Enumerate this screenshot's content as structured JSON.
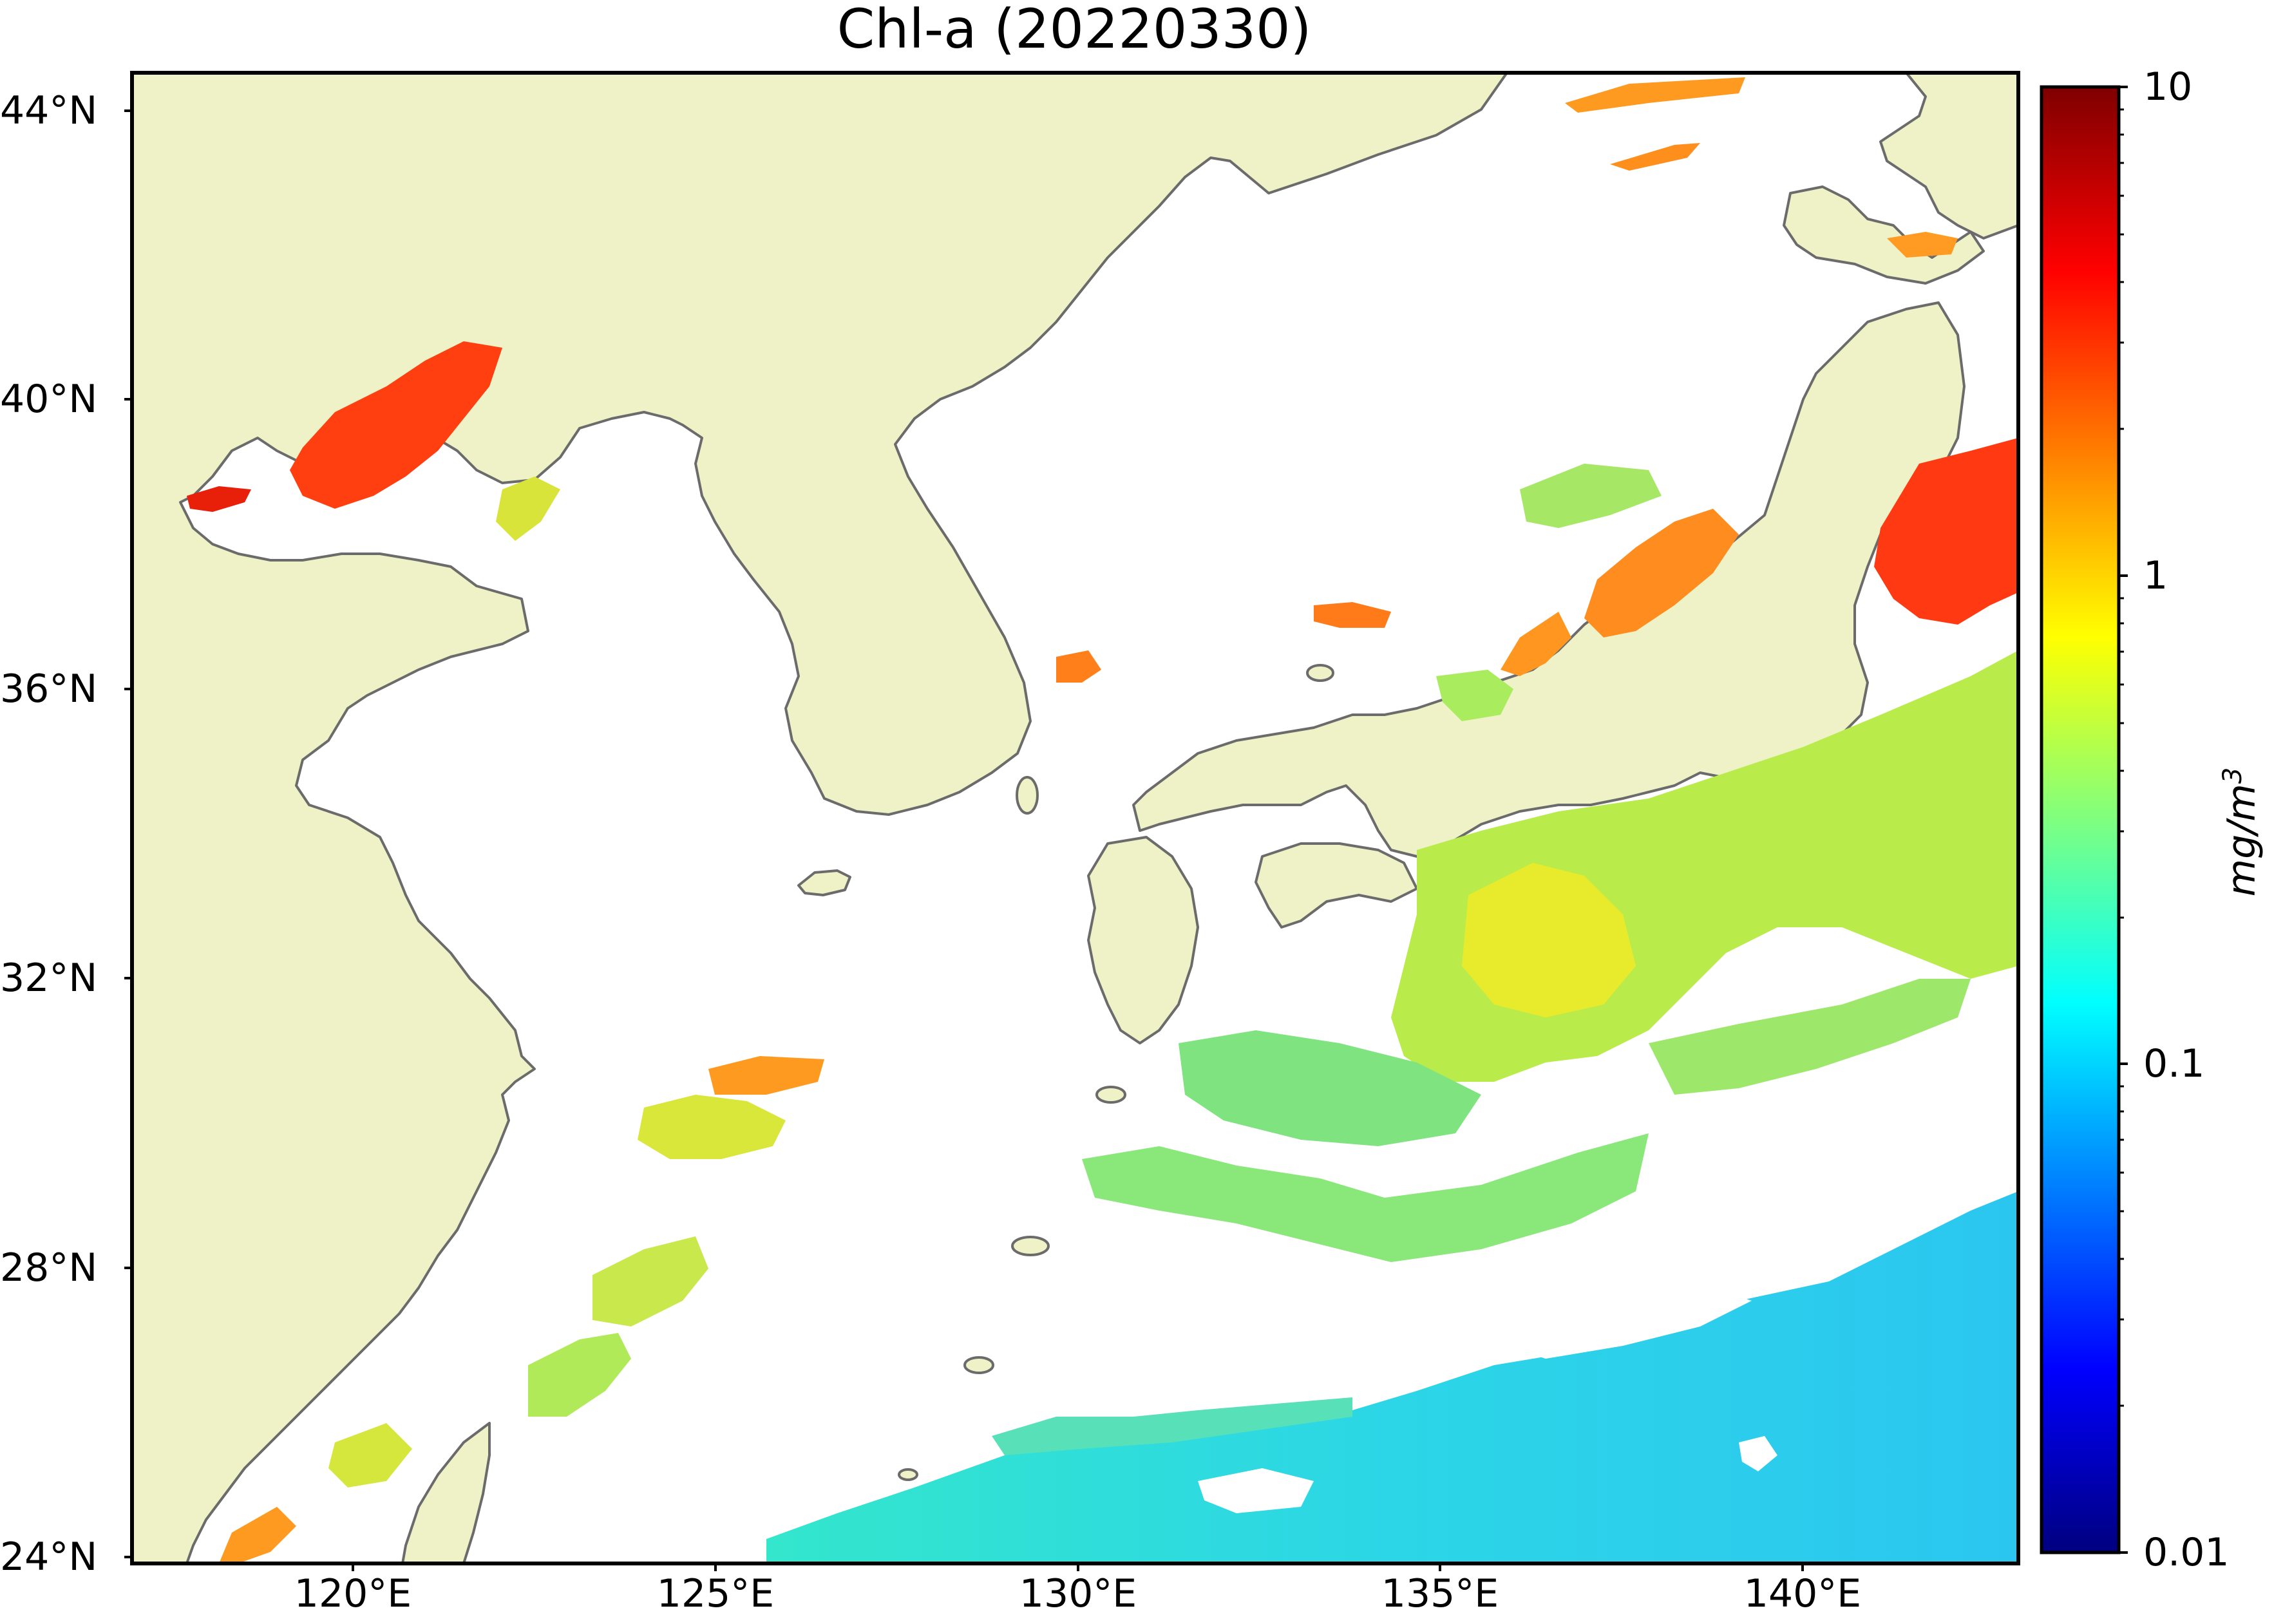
{
  "map": {
    "title": "Chl-a (20220330)",
    "lat_labels": [
      "44°N",
      "40°N",
      "36°N",
      "32°N",
      "28°N",
      "24°N"
    ],
    "lon_labels": [
      "120°E",
      "125°E",
      "130°E",
      "135°E",
      "140°E"
    ],
    "colors": {
      "land": "#eff2c6",
      "ocean_nodata": "#ffffff",
      "coastline": "#6b6b6b",
      "frame": "#000000"
    }
  },
  "colorbar": {
    "labels": [
      "10",
      "1",
      "0.1",
      "0.01"
    ],
    "unit_base": "mg/m",
    "unit_exp": "3",
    "scale": "log",
    "colormap": [
      "#00007f",
      "#0000ff",
      "#007fff",
      "#00ffff",
      "#7fff7f",
      "#ffff00",
      "#ff7f00",
      "#ff0000",
      "#7f0000"
    ]
  }
}
